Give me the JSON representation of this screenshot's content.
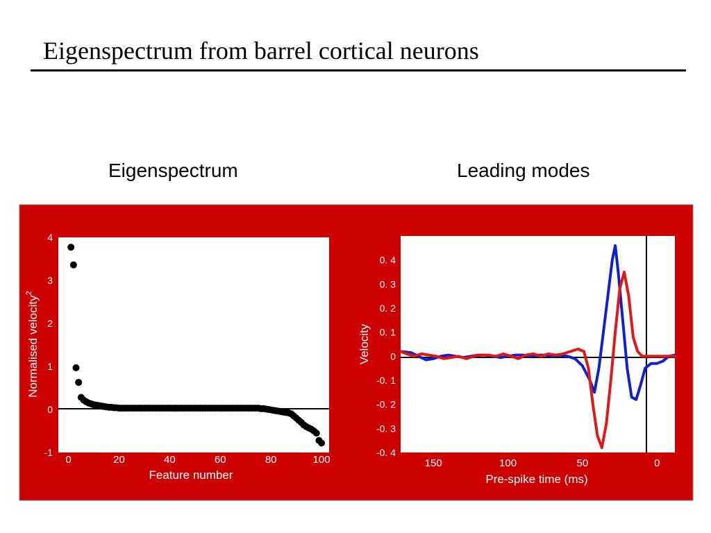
{
  "slide": {
    "title": "Eigenspectrum from barrel cortical neurons",
    "left_panel_title": "Eigenspectrum",
    "right_panel_title": "Leading modes"
  },
  "colors": {
    "background_panel": "#cc0000",
    "plot_area": "#ffffff",
    "mode1": "#1020d0",
    "mode2": "#e01818",
    "points": "#000000"
  },
  "chart_data": [
    {
      "type": "scatter",
      "title": "Eigenspectrum",
      "xlabel": "Feature number",
      "ylabel": "Normalised velocity",
      "ylabel_superscript": "2",
      "xlim": [
        -4,
        103
      ],
      "ylim": [
        -1,
        4
      ],
      "xticks": [
        "0",
        "20",
        "40",
        "60",
        "80",
        "100"
      ],
      "yticks": [
        "4",
        "3",
        "2",
        "1",
        "0",
        "-1"
      ],
      "zero_line": true,
      "x": [
        1,
        2,
        3,
        4,
        5,
        6,
        7,
        8,
        9,
        10,
        11,
        12,
        13,
        14,
        15,
        16,
        17,
        18,
        19,
        20,
        21,
        22,
        23,
        24,
        25,
        26,
        27,
        28,
        29,
        30,
        31,
        32,
        33,
        34,
        35,
        36,
        37,
        38,
        39,
        40,
        41,
        42,
        43,
        44,
        45,
        46,
        47,
        48,
        49,
        50,
        51,
        52,
        53,
        54,
        55,
        56,
        57,
        58,
        59,
        60,
        61,
        62,
        63,
        64,
        65,
        66,
        67,
        68,
        69,
        70,
        71,
        72,
        73,
        74,
        75,
        76,
        77,
        78,
        79,
        80,
        81,
        82,
        83,
        84,
        85,
        86,
        87,
        88,
        89,
        90,
        91,
        92,
        93,
        94,
        95,
        96,
        97,
        98,
        99,
        100
      ],
      "values": [
        3.77,
        3.36,
        0.97,
        0.63,
        0.28,
        0.22,
        0.18,
        0.15,
        0.13,
        0.11,
        0.1,
        0.09,
        0.08,
        0.07,
        0.06,
        0.05,
        0.05,
        0.04,
        0.04,
        0.03,
        0.03,
        0.03,
        0.03,
        0.03,
        0.03,
        0.03,
        0.03,
        0.03,
        0.03,
        0.03,
        0.03,
        0.03,
        0.03,
        0.03,
        0.03,
        0.03,
        0.03,
        0.03,
        0.03,
        0.03,
        0.03,
        0.03,
        0.03,
        0.03,
        0.03,
        0.03,
        0.03,
        0.03,
        0.03,
        0.03,
        0.03,
        0.03,
        0.03,
        0.03,
        0.03,
        0.03,
        0.03,
        0.03,
        0.03,
        0.03,
        0.03,
        0.03,
        0.03,
        0.03,
        0.03,
        0.03,
        0.03,
        0.03,
        0.03,
        0.03,
        0.03,
        0.03,
        0.03,
        0.03,
        0.03,
        0.02,
        0.02,
        0.01,
        0.0,
        -0.01,
        -0.02,
        -0.03,
        -0.04,
        -0.05,
        -0.06,
        -0.07,
        -0.08,
        -0.1,
        -0.15,
        -0.2,
        -0.25,
        -0.3,
        -0.36,
        -0.4,
        -0.43,
        -0.46,
        -0.5,
        -0.55,
        -0.72,
        -0.78
      ]
    },
    {
      "type": "line",
      "title": "Leading modes",
      "xlabel": "Pre-spike time (ms)",
      "ylabel": "Velocity",
      "x_reversed": true,
      "xlim": [
        172,
        -12
      ],
      "ylim": [
        -0.4,
        0.5
      ],
      "xticks": [
        "150",
        "100",
        "50",
        "0"
      ],
      "yticks": [
        "0. 4",
        "0. 3",
        "0. 2",
        "0. 1",
        "0",
        "-0. 1",
        "-0. 2",
        "-0. 3",
        "-0. 4"
      ],
      "zero_line": true,
      "vertical_line_at": 0,
      "series": [
        {
          "color": "blue",
          "points": [
            [
              172,
              0.02
            ],
            [
              165,
              0.015
            ],
            [
              160,
              0.0
            ],
            [
              155,
              -0.015
            ],
            [
              150,
              -0.01
            ],
            [
              145,
              0.0
            ],
            [
              140,
              0.005
            ],
            [
              135,
              0.0
            ],
            [
              130,
              -0.005
            ],
            [
              125,
              0.0
            ],
            [
              120,
              0.005
            ],
            [
              115,
              0.005
            ],
            [
              110,
              0.0
            ],
            [
              105,
              -0.005
            ],
            [
              100,
              0.0
            ],
            [
              95,
              0.005
            ],
            [
              90,
              0.005
            ],
            [
              85,
              0.0
            ],
            [
              80,
              0.005
            ],
            [
              75,
              0.005
            ],
            [
              70,
              0.0
            ],
            [
              65,
              0.005
            ],
            [
              60,
              0.0
            ],
            [
              55,
              -0.01
            ],
            [
              50,
              -0.04
            ],
            [
              45,
              -0.1
            ],
            [
              42,
              -0.15
            ],
            [
              39,
              -0.05
            ],
            [
              36,
              0.1
            ],
            [
              33,
              0.25
            ],
            [
              30,
              0.4
            ],
            [
              28,
              0.46
            ],
            [
              26,
              0.35
            ],
            [
              23,
              0.15
            ],
            [
              20,
              -0.05
            ],
            [
              17,
              -0.17
            ],
            [
              14,
              -0.18
            ],
            [
              11,
              -0.12
            ],
            [
              8,
              -0.05
            ],
            [
              4,
              -0.03
            ],
            [
              0,
              -0.03
            ],
            [
              -4,
              -0.02
            ],
            [
              -8,
              0.0
            ],
            [
              -12,
              0.005
            ]
          ]
        },
        {
          "color": "red",
          "points": [
            [
              172,
              0.02
            ],
            [
              168,
              0.01
            ],
            [
              163,
              0.0
            ],
            [
              158,
              0.01
            ],
            [
              153,
              0.005
            ],
            [
              148,
              0.0
            ],
            [
              143,
              -0.01
            ],
            [
              138,
              -0.005
            ],
            [
              133,
              0.0
            ],
            [
              128,
              -0.01
            ],
            [
              123,
              0.0
            ],
            [
              118,
              0.005
            ],
            [
              113,
              0.005
            ],
            [
              108,
              0.0
            ],
            [
              103,
              0.01
            ],
            [
              98,
              0.0
            ],
            [
              93,
              -0.01
            ],
            [
              88,
              0.005
            ],
            [
              83,
              0.01
            ],
            [
              78,
              0.0
            ],
            [
              73,
              0.01
            ],
            [
              68,
              0.005
            ],
            [
              63,
              0.01
            ],
            [
              58,
              0.02
            ],
            [
              53,
              0.03
            ],
            [
              49,
              0.02
            ],
            [
              46,
              -0.05
            ],
            [
              43,
              -0.2
            ],
            [
              40,
              -0.33
            ],
            [
              37,
              -0.38
            ],
            [
              34,
              -0.28
            ],
            [
              31,
              -0.1
            ],
            [
              28,
              0.1
            ],
            [
              25,
              0.28
            ],
            [
              22,
              0.35
            ],
            [
              19,
              0.25
            ],
            [
              16,
              0.08
            ],
            [
              13,
              0.02
            ],
            [
              10,
              0.0
            ],
            [
              6,
              0.0
            ],
            [
              2,
              0.0
            ],
            [
              -4,
              0.0
            ],
            [
              -12,
              0.0
            ]
          ]
        }
      ]
    }
  ]
}
